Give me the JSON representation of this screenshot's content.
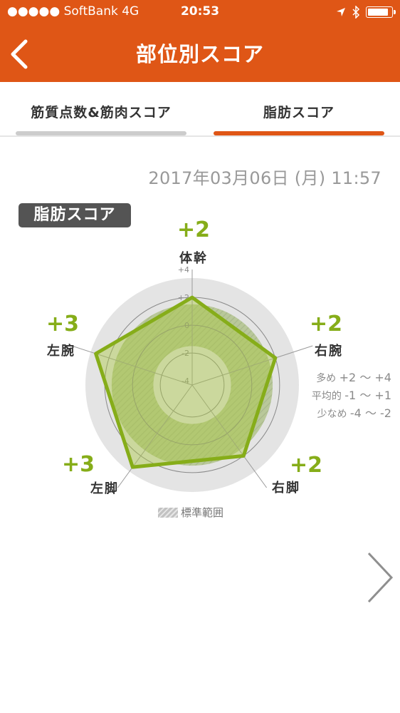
{
  "status_bar": {
    "carrier": "●●●●● SoftBank   4G",
    "time": "20:53",
    "battery_level": 0.92
  },
  "nav": {
    "title": "部位別スコア",
    "back_icon": "chevron-left-icon"
  },
  "tabs": [
    {
      "label": "筋質点数&筋肉スコア",
      "active": false
    },
    {
      "label": "脂肪スコア",
      "active": true
    }
  ],
  "colors": {
    "header": "#df5616",
    "active_tab_bar": "#df5616",
    "inactive_tab_bar": "#cccccc",
    "score_green": "#86ad19",
    "badge_bg": "#545454"
  },
  "datetime": "2017年03月06日 (月) 11:57",
  "badge": "脂肪スコア",
  "radar": {
    "scale_ticks": [
      "+4",
      "+2",
      "0",
      "-2",
      "-4"
    ],
    "parts": [
      {
        "name": "体幹",
        "score": "+2",
        "value": 2
      },
      {
        "name": "右腕",
        "score": "+2",
        "value": 2
      },
      {
        "name": "右脚",
        "score": "+2",
        "value": 2
      },
      {
        "name": "左脚",
        "score": "+3",
        "value": 3
      },
      {
        "name": "左腕",
        "score": "+3",
        "value": 3
      }
    ]
  },
  "legend": [
    {
      "label": "多め",
      "range": "+2 〜 +4"
    },
    {
      "label": "平均的",
      "range": "-1 〜 +1"
    },
    {
      "label": "少なめ",
      "range": "-4 〜 -2"
    }
  ],
  "standard_range_label": "標準範囲",
  "next_icon": "chevron-right-icon"
}
